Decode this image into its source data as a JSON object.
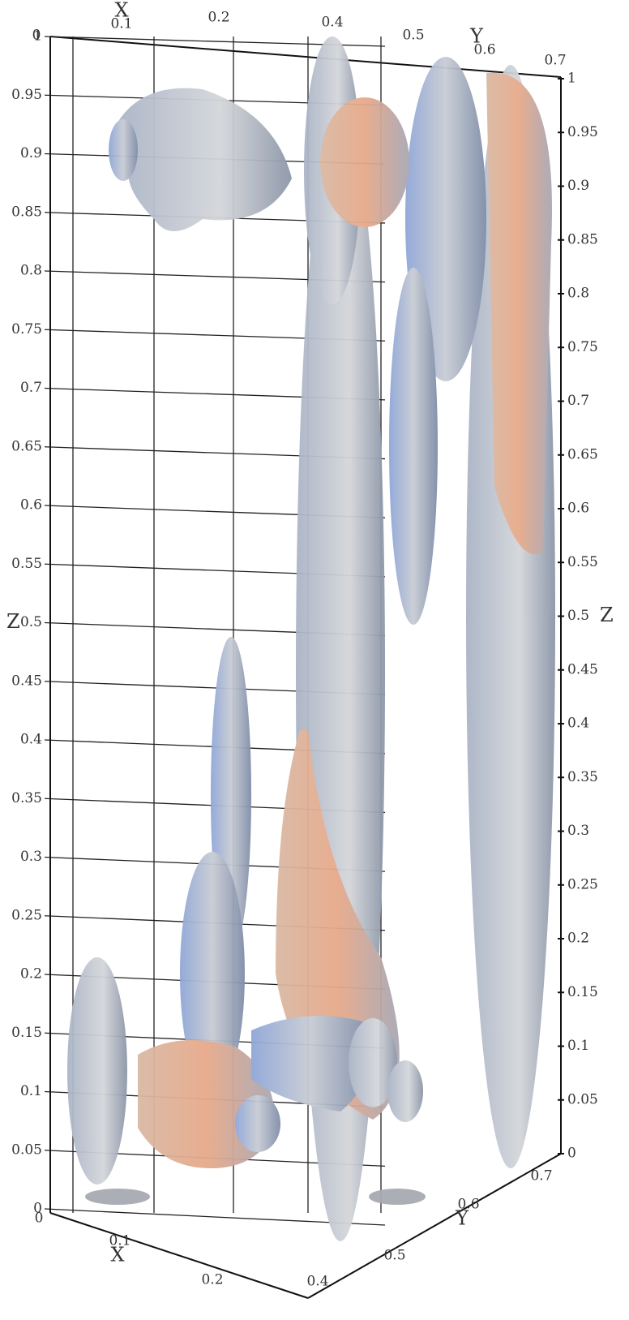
{
  "left_z_axis": {
    "title": "Z",
    "ticks": [
      1,
      0.95,
      0.9,
      0.85,
      0.8,
      0.75,
      0.7,
      0.65,
      0.6,
      0.55,
      0.5,
      0.45,
      0.4,
      0.35,
      0.3,
      0.25,
      0.2,
      0.15,
      0.1,
      0.05,
      0
    ]
  },
  "right_z_axis": {
    "title": "Z",
    "ticks": [
      1,
      0.95,
      0.9,
      0.85,
      0.8,
      0.75,
      0.7,
      0.65,
      0.6,
      0.55,
      0.5,
      0.45,
      0.4,
      0.35,
      0.3,
      0.25,
      0.2,
      0.15,
      0.1,
      0.05,
      0
    ]
  },
  "top_x_axis": {
    "title": "X",
    "ticks": [
      0,
      0.1,
      0.2
    ]
  },
  "top_y_axis": {
    "title": "Y",
    "ticks": [
      0.4,
      0.5,
      0.6,
      0.7
    ]
  },
  "bottom_x_axis": {
    "title": "X",
    "ticks": [
      0,
      0.1,
      0.2
    ]
  },
  "bottom_y_axis": {
    "title": "Y",
    "ticks": [
      0.4,
      0.5,
      0.6,
      0.7
    ]
  }
}
